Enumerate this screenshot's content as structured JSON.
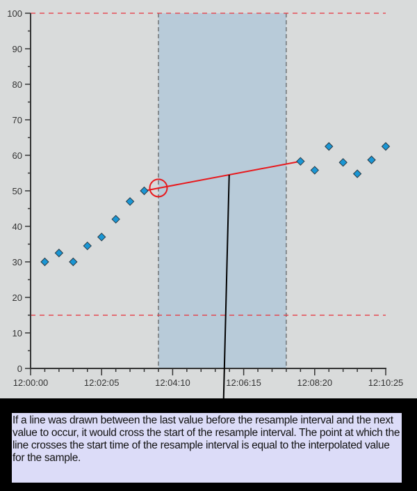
{
  "chart_data": {
    "type": "scatter",
    "title": "",
    "xlabel": "",
    "ylabel": "",
    "ylim": [
      0,
      100
    ],
    "y_ticks": [
      0,
      10,
      20,
      30,
      40,
      50,
      60,
      70,
      80,
      90,
      100
    ],
    "x_tick_labels": [
      "12:00:00",
      "12:02:05",
      "12:04:10",
      "12:06:15",
      "12:08:20",
      "12:10:25"
    ],
    "x_range": [
      "12:00:00",
      "12:10:25"
    ],
    "grid": false,
    "series": [
      {
        "name": "samples",
        "marker": "diamond",
        "color": "#1a96d4",
        "points": [
          {
            "t": "12:00:25",
            "v": 30.0
          },
          {
            "t": "12:00:50",
            "v": 32.5
          },
          {
            "t": "12:01:15",
            "v": 30.0
          },
          {
            "t": "12:01:40",
            "v": 34.5
          },
          {
            "t": "12:02:05",
            "v": 37.0
          },
          {
            "t": "12:02:30",
            "v": 42.0
          },
          {
            "t": "12:02:55",
            "v": 47.0
          },
          {
            "t": "12:03:20",
            "v": 50.0
          },
          {
            "t": "12:07:55",
            "v": 58.3
          },
          {
            "t": "12:08:20",
            "v": 55.8
          },
          {
            "t": "12:08:45",
            "v": 62.5
          },
          {
            "t": "12:09:10",
            "v": 58.0
          },
          {
            "t": "12:09:35",
            "v": 54.8
          },
          {
            "t": "12:10:00",
            "v": 58.7
          },
          {
            "t": "12:10:25",
            "v": 62.5
          }
        ]
      }
    ],
    "limits": [
      {
        "name": "upper-limit",
        "value": 100,
        "style": "dashed",
        "color": "#e8323c"
      },
      {
        "name": "lower-limit",
        "value": 15,
        "style": "dashed",
        "color": "#e8323c"
      }
    ],
    "resample_interval": {
      "start": "12:03:45",
      "end": "12:07:30",
      "color": "#b8cbd9"
    },
    "interpolation_line": {
      "from": {
        "t": "12:03:20",
        "v": 50.0
      },
      "to": {
        "t": "12:07:55",
        "v": 58.3
      },
      "color": "#e8181c"
    },
    "interpolated_point": {
      "t": "12:03:45",
      "v": 50.8,
      "marker": "circle",
      "color": "#e8181c"
    }
  },
  "callout": {
    "text": "If a line was drawn between the last value before the resample interval and the next value to occur, it would cross the start of the resample interval. The point at which the line crosses the start time of the resample interval is equal to the interpolated value for the sample."
  }
}
